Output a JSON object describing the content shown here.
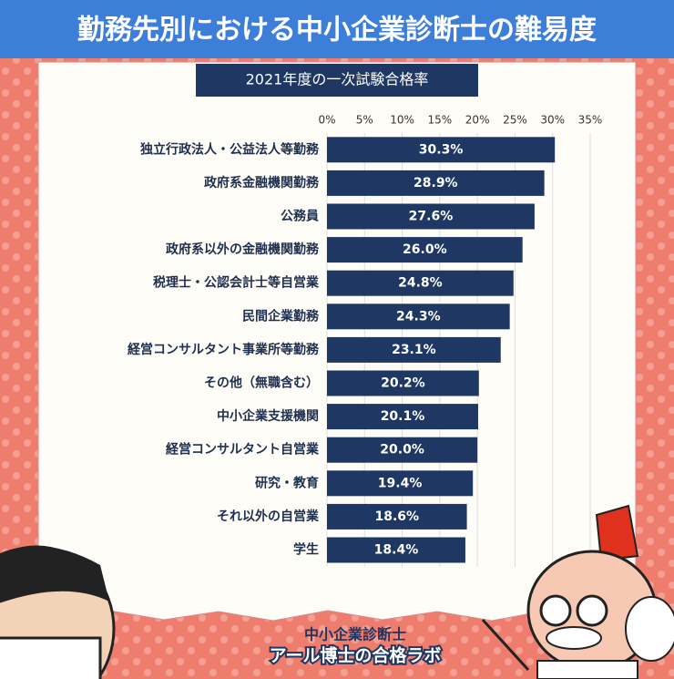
{
  "chart_data": {
    "type": "bar",
    "orientation": "horizontal",
    "title": "勤務先別における中小企業診断士の難易度",
    "subtitle": "2021年度の一次試験合格率",
    "categories": [
      "独立行政法人・公益法人等勤務",
      "政府系金融機関勤務",
      "公務員",
      "政府系以外の金融機関勤務",
      "税理士・公認会計士等自営業",
      "民間企業勤務",
      "経営コンサルタント事業所等勤務",
      "その他（無職含む）",
      "中小企業支援機関",
      "経営コンサルタント自営業",
      "研究・教育",
      "それ以外の自営業",
      "学生"
    ],
    "values": [
      30.3,
      28.9,
      27.6,
      26.0,
      24.8,
      24.3,
      23.1,
      20.2,
      20.1,
      20.0,
      19.4,
      18.6,
      18.4
    ],
    "value_labels": [
      "30.3%",
      "28.9%",
      "27.6%",
      "26.0%",
      "24.8%",
      "24.3%",
      "23.1%",
      "20.2%",
      "20.1%",
      "20.0%",
      "19.4%",
      "18.6%",
      "18.4%"
    ],
    "color": "#1e3763",
    "xlim": [
      0,
      35
    ],
    "xticks": [
      {
        "value": 0,
        "label": "0%"
      },
      {
        "value": 5,
        "label": "5%"
      },
      {
        "value": 10,
        "label": "10%"
      },
      {
        "value": 15,
        "label": "15%"
      },
      {
        "value": 20,
        "label": "20%"
      },
      {
        "value": 25,
        "label": "25%"
      },
      {
        "value": 30,
        "label": "30%"
      },
      {
        "value": 35,
        "label": "35%"
      }
    ],
    "grid": true
  },
  "brand": {
    "line1": "中小企業診断士",
    "line2": "アール博士の合格ラボ"
  }
}
